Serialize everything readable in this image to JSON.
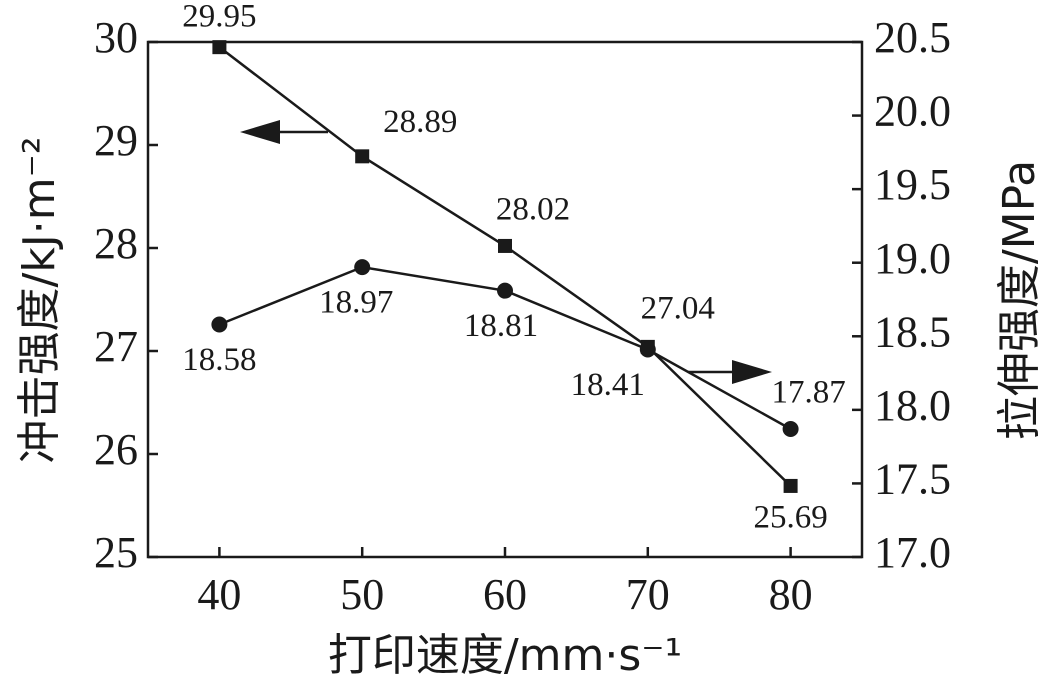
{
  "chart_data": {
    "type": "line",
    "xlabel": "打印速度/mm·s⁻¹",
    "ylabel": "冲击强度/kJ·m⁻²",
    "y2label": "拉伸强度/MPa",
    "x": [
      40,
      50,
      60,
      70,
      80
    ],
    "xlim": [
      35,
      85
    ],
    "xticks": [
      40,
      50,
      60,
      70,
      80
    ],
    "ylim": [
      25,
      30
    ],
    "yticks": [
      25,
      26,
      27,
      28,
      29,
      30
    ],
    "y2lim": [
      17,
      20.5
    ],
    "y2ticks": [
      {
        "value": 17,
        "label": "17.0"
      },
      17.5,
      {
        "value": 18,
        "label": "18.0"
      },
      18.5,
      {
        "value": 19,
        "label": "19.0"
      },
      19.5,
      {
        "value": 20,
        "label": "20.0"
      },
      20.5
    ],
    "series": [
      {
        "color": "#1a1a1a",
        "marker": "square",
        "values": [
          29.95,
          28.89,
          28.02,
          27.04,
          25.69
        ]
      },
      {
        "color": "#1a1a1a",
        "marker": "circle",
        "axis": "y2",
        "values": [
          18.58,
          18.97,
          18.81,
          18.41,
          17.87
        ]
      }
    ]
  }
}
